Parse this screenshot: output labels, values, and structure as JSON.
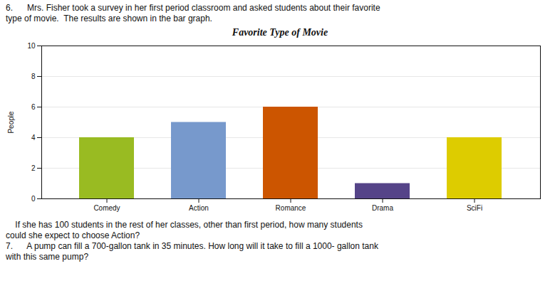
{
  "chart_data": {
    "type": "bar",
    "title": "Favorite Type of Movie",
    "ylabel": "People",
    "categories": [
      "Comedy",
      "Action",
      "Romance",
      "Drama",
      "SciFi"
    ],
    "values": [
      4,
      5,
      6,
      1,
      4
    ],
    "colors": [
      "#99bb22",
      "#7799cc",
      "#cc5500",
      "#554488",
      "#ddcc00"
    ],
    "ylim": [
      0,
      10
    ],
    "yticks": [
      0,
      2,
      4,
      6,
      8,
      10
    ],
    "grid": true,
    "annotations": [
      "6.      Mrs. Fisher took a survey in her first period classroom and asked students about their favorite",
      "type of movie.  The results are shown in the bar graph.",
      "    If she has 100 students in the rest of her classes, other than first period, how many students",
      "could she expect to choose Action?",
      "7.      A pump can fill a 700-gallon tank in 35 minutes. How long will it take to fill a 1000- gallon tank",
      "with this same pump?"
    ]
  }
}
